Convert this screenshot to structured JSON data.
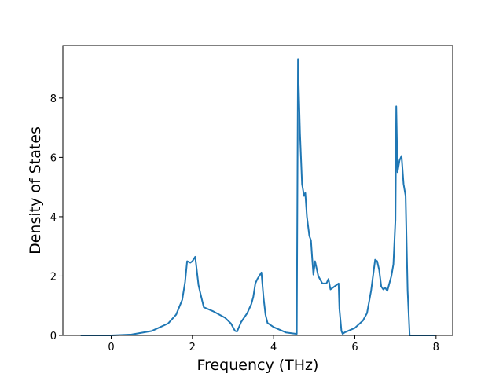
{
  "chart_data": {
    "type": "line",
    "xlabel": "Frequency (THz)",
    "ylabel": "Density of States",
    "x": [
      -0.75,
      0,
      0.5,
      1.0,
      1.4,
      1.6,
      1.75,
      1.82,
      1.87,
      1.95,
      2.0,
      2.07,
      2.15,
      2.2,
      2.28,
      2.5,
      2.8,
      2.95,
      3.05,
      3.1,
      3.2,
      3.35,
      3.45,
      3.5,
      3.55,
      3.6,
      3.7,
      3.75,
      3.8,
      3.85,
      4.0,
      4.3,
      4.57,
      4.6,
      4.65,
      4.7,
      4.75,
      4.78,
      4.82,
      4.88,
      4.92,
      4.95,
      4.98,
      5.02,
      5.1,
      5.2,
      5.3,
      5.35,
      5.4,
      5.5,
      5.6,
      5.62,
      5.67,
      5.7,
      5.75,
      6.0,
      6.2,
      6.3,
      6.4,
      6.5,
      6.55,
      6.6,
      6.65,
      6.7,
      6.75,
      6.8,
      6.9,
      6.95,
      7.0,
      7.02,
      7.05,
      7.1,
      7.15,
      7.2,
      7.25,
      7.3,
      7.35,
      7.97
    ],
    "values": [
      0,
      0,
      0.03,
      0.15,
      0.4,
      0.7,
      1.2,
      1.8,
      2.5,
      2.45,
      2.5,
      2.65,
      1.7,
      1.4,
      0.95,
      0.82,
      0.6,
      0.4,
      0.15,
      0.13,
      0.45,
      0.75,
      1.05,
      1.3,
      1.75,
      1.9,
      2.12,
      1.3,
      0.7,
      0.42,
      0.28,
      0.1,
      0.05,
      9.31,
      6.8,
      5.1,
      4.7,
      4.8,
      4.0,
      3.35,
      3.2,
      2.6,
      2.05,
      2.5,
      2.0,
      1.75,
      1.75,
      1.9,
      1.55,
      1.65,
      1.75,
      0.9,
      0.15,
      0.05,
      0.1,
      0.25,
      0.5,
      0.75,
      1.5,
      2.55,
      2.5,
      2.2,
      1.65,
      1.55,
      1.6,
      1.5,
      2.0,
      2.4,
      3.9,
      7.72,
      5.5,
      5.9,
      6.05,
      5.1,
      4.7,
      1.5,
      0,
      0
    ],
    "color": "#1f77b4",
    "xlim": [
      -1.19,
      8.41
    ],
    "ylim": [
      0,
      9.77
    ],
    "xticks": [
      0,
      2,
      4,
      6,
      8
    ],
    "yticks": [
      0,
      2,
      4,
      6,
      8
    ]
  }
}
